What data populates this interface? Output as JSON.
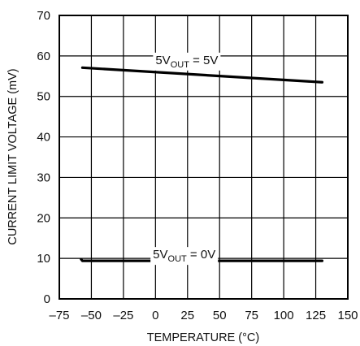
{
  "chart_data": {
    "type": "line",
    "xlabel": "TEMPERATURE (°C)",
    "ylabel": "CURRENT LIMIT VOLTAGE (mV)",
    "xlim": [
      -75,
      150
    ],
    "ylim": [
      0,
      70
    ],
    "x_ticks": [
      -75,
      -50,
      -25,
      0,
      25,
      50,
      75,
      100,
      125,
      150
    ],
    "y_ticks": [
      0,
      10,
      20,
      30,
      40,
      50,
      60,
      70
    ],
    "grid": true,
    "legend": "none",
    "series": [
      {
        "label_main": "5V",
        "label_sub": "OUT",
        "label_tail": " = 5V",
        "label_at": [
          0,
          58
        ],
        "color": "#000000",
        "x": [
          -57,
          130
        ],
        "y": [
          57.1,
          53.5
        ]
      },
      {
        "label_main": "5V",
        "label_sub": "OUT",
        "label_tail": " = 0V",
        "label_at": [
          -2,
          10
        ],
        "color": "#000000",
        "x": [
          -58,
          -57,
          130
        ],
        "y": [
          9.8,
          9.4,
          9.4
        ]
      }
    ]
  }
}
